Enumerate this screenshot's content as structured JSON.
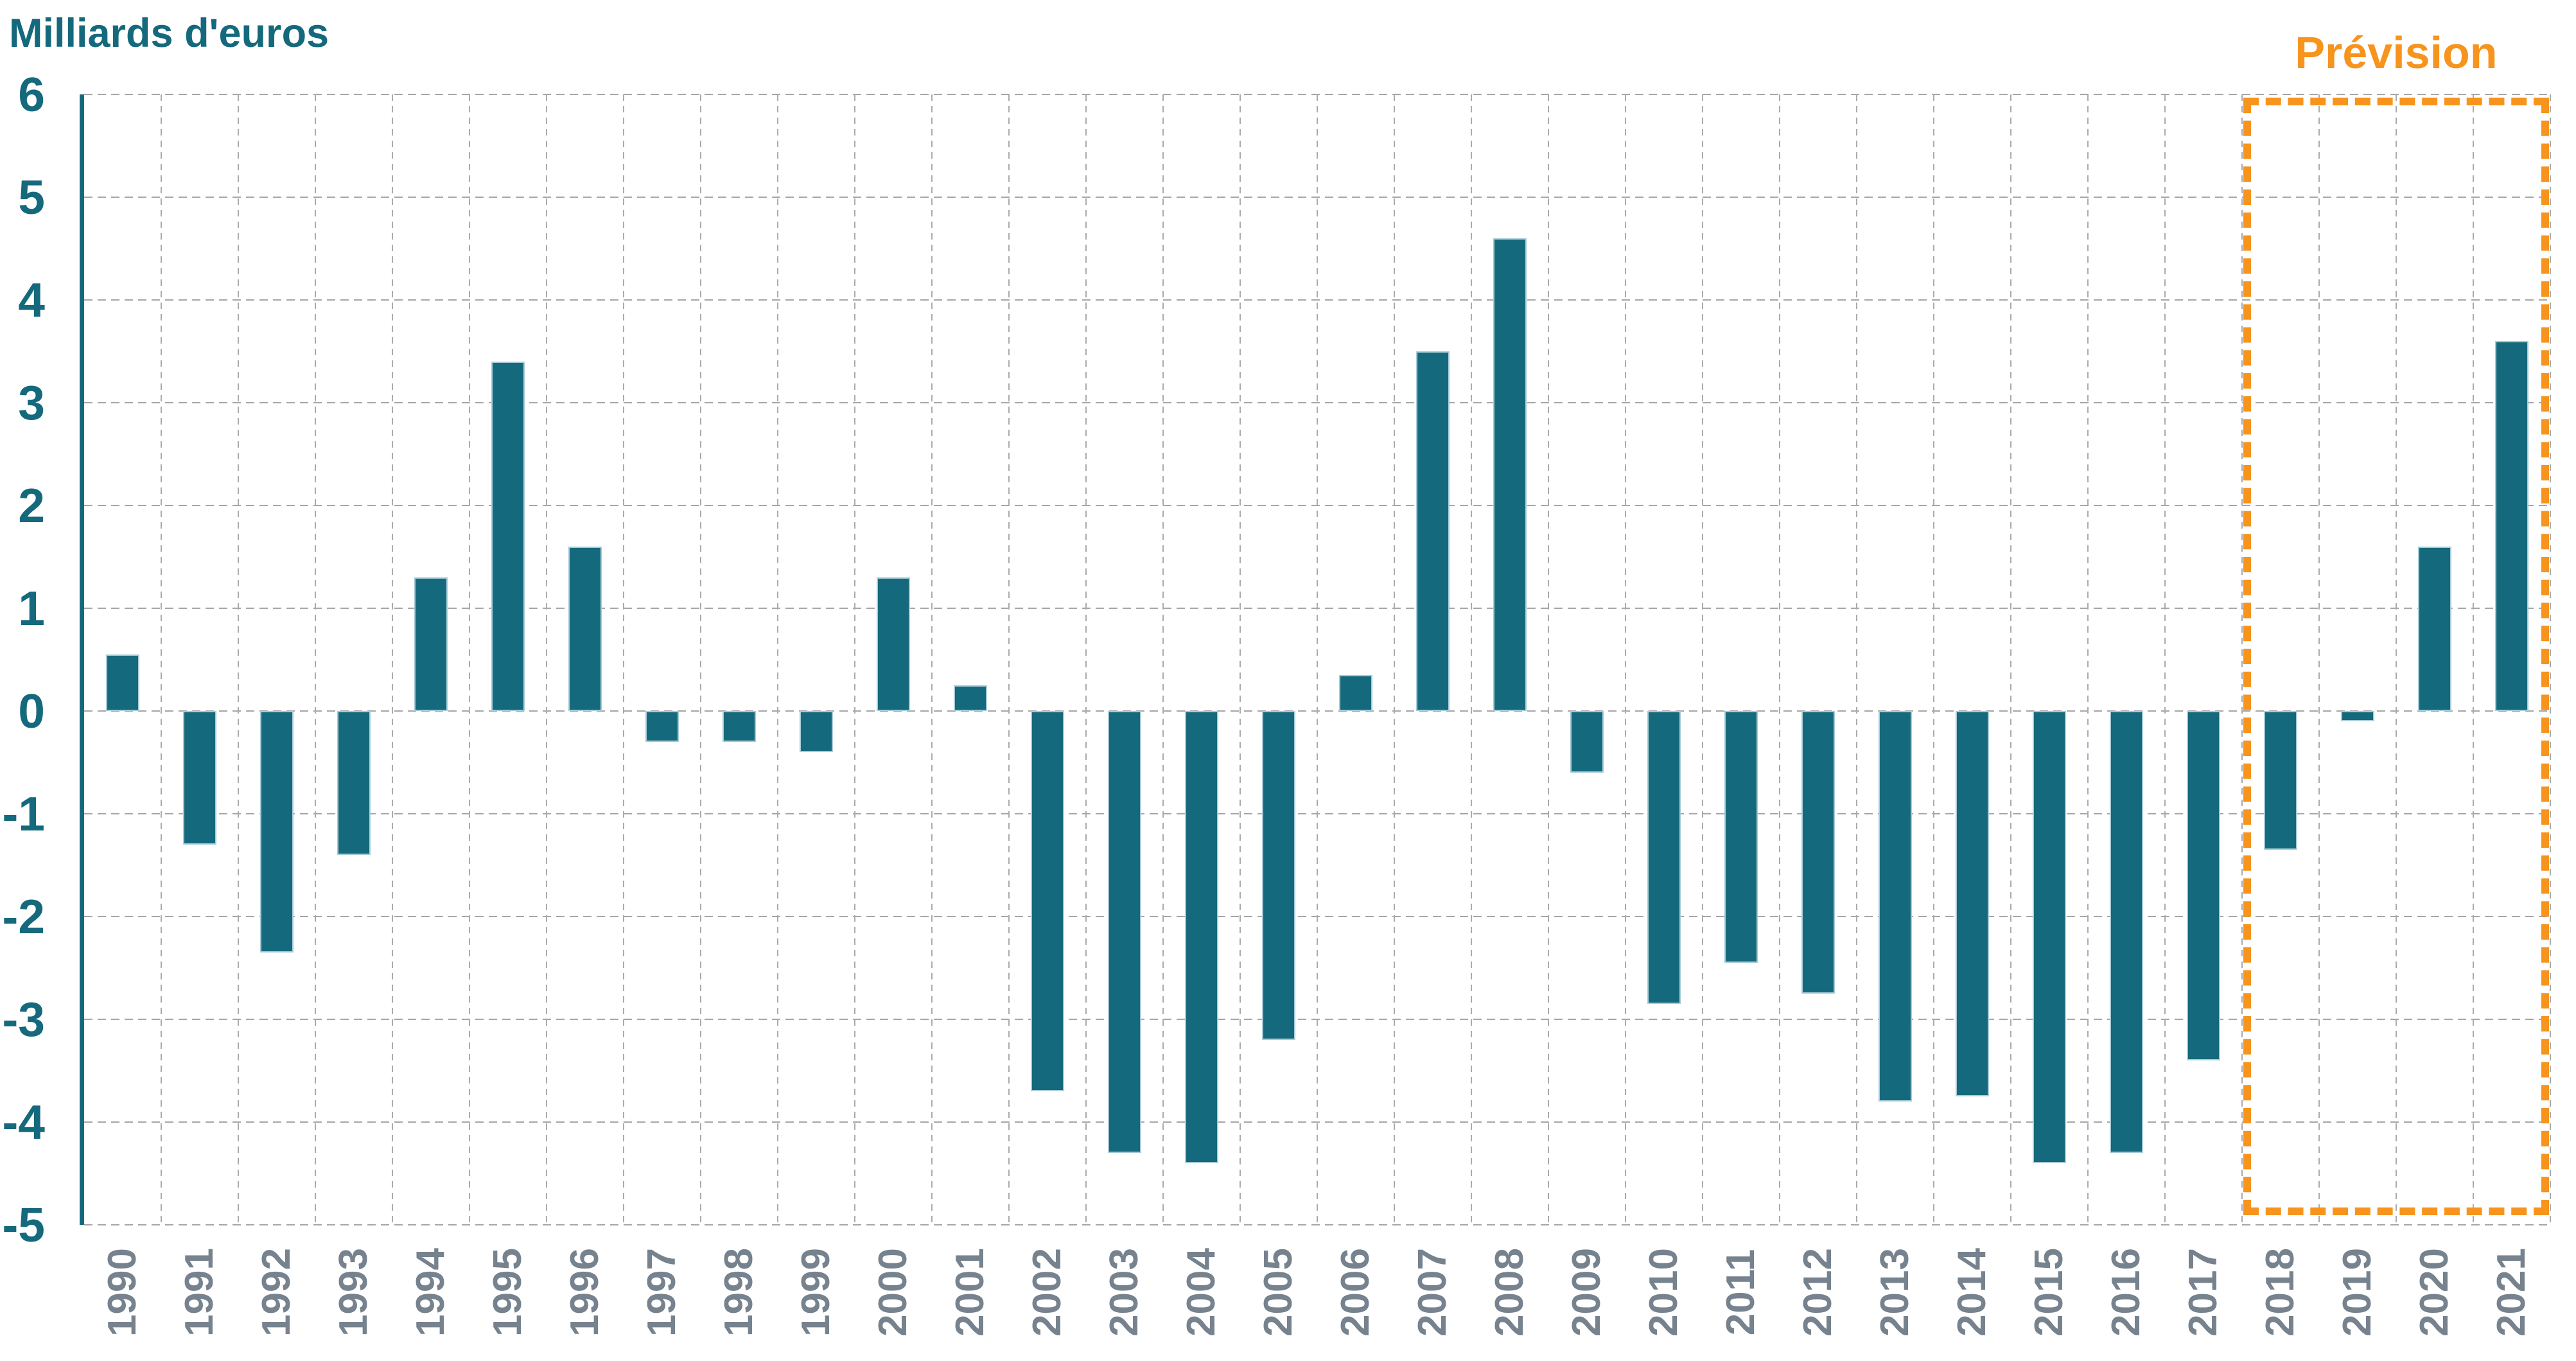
{
  "chart_data": {
    "type": "bar",
    "title": "Milliards d'euros",
    "xlabel": "",
    "ylabel": "Milliards d'euros",
    "ylim": [
      -5,
      6
    ],
    "ytick_step": 1,
    "grid": "dashed-both-axes",
    "legend": "none",
    "bar_color": "#15697C",
    "categories": [
      "1990",
      "1991",
      "1992",
      "1993",
      "1994",
      "1995",
      "1996",
      "1997",
      "1998",
      "1999",
      "2000",
      "2001",
      "2002",
      "2003",
      "2004",
      "2005",
      "2006",
      "2007",
      "2008",
      "2009",
      "2010",
      "2011",
      "2012",
      "2013",
      "2014",
      "2015",
      "2016",
      "2017",
      "2018",
      "2019",
      "2020",
      "2021"
    ],
    "values": [
      0.55,
      -1.3,
      -2.35,
      -1.4,
      1.3,
      3.4,
      1.6,
      -0.3,
      -0.3,
      -0.4,
      1.3,
      0.25,
      -3.7,
      -4.3,
      -4.4,
      -3.2,
      0.35,
      3.5,
      4.6,
      -0.6,
      -2.85,
      -2.45,
      -2.75,
      -3.8,
      -3.75,
      -4.4,
      -4.3,
      -3.4,
      -1.35,
      -0.1,
      1.6,
      3.6
    ],
    "forecast": {
      "label": "Prévision",
      "years": [
        "2018",
        "2019",
        "2020",
        "2021"
      ],
      "box_color": "#F7941D"
    }
  },
  "colors": {
    "bar": "#15697C",
    "axis": "#15697C",
    "title_text": "#15697C",
    "y_tick_text": "#15697C",
    "x_tick_text": "#76828E",
    "gridline": "#A6A6A6",
    "forecast_accent": "#F7941D",
    "background": "#FFFFFF"
  }
}
